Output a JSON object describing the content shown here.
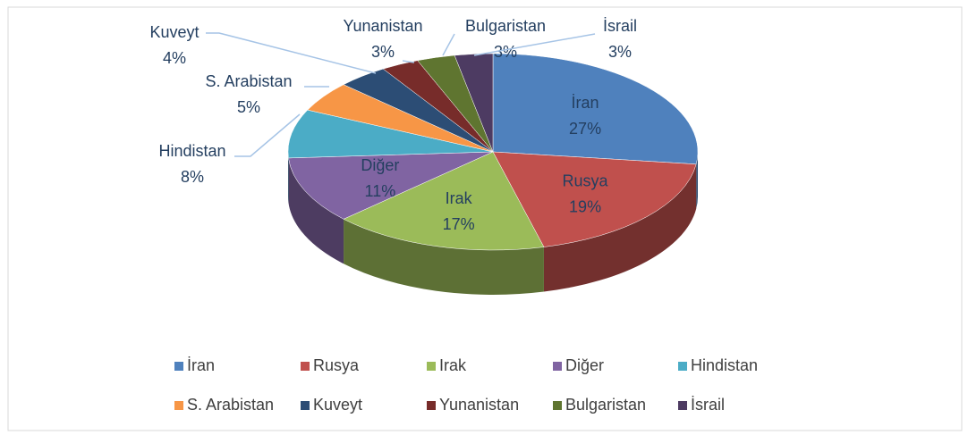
{
  "chart_data": {
    "type": "pie",
    "categories": [
      "İran",
      "Rusya",
      "Irak",
      "Diğer",
      "Hindistan",
      "S. Arabistan",
      "Kuveyt",
      "Yunanistan",
      "Bulgaristan",
      "İsrail"
    ],
    "values": [
      27,
      19,
      17,
      11,
      8,
      5,
      4,
      3,
      3,
      3
    ],
    "value_labels": [
      "27%",
      "19%",
      "17%",
      "11%",
      "8%",
      "5%",
      "4%",
      "3%",
      "3%",
      "3%"
    ],
    "colors": [
      "#4f81bd",
      "#c0504d",
      "#9bbb59",
      "#8064a2",
      "#4bacc6",
      "#f79646",
      "#2c4d75",
      "#772c2a",
      "#5f7530",
      "#4d3b62"
    ],
    "legend": "bottom"
  }
}
